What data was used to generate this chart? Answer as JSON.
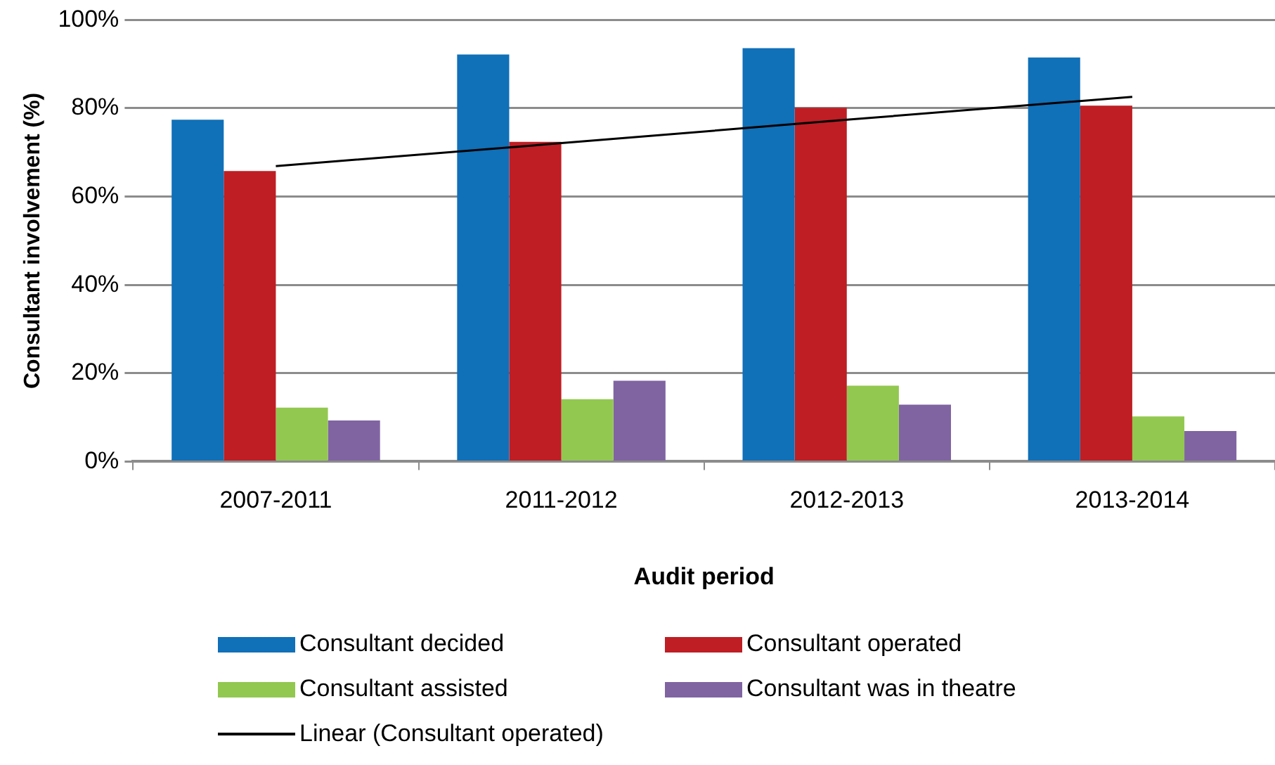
{
  "chart_data": {
    "type": "bar",
    "xlabel": "Audit period",
    "ylabel": "Consultant involvement (%)",
    "categories": [
      "2007-2011",
      "2011-2012",
      "2012-2013",
      "2013-2014"
    ],
    "series": [
      {
        "name": "Consultant decided",
        "color": "#1070b8",
        "values": [
          77.4,
          92.2,
          93.6,
          91.5
        ]
      },
      {
        "name": "Consultant operated",
        "color": "#be1e24",
        "values": [
          65.8,
          72.4,
          80.1,
          80.6
        ]
      },
      {
        "name": "Consultant assisted",
        "color": "#92c850",
        "values": [
          12.2,
          14.1,
          17.2,
          10.2
        ]
      },
      {
        "name": "Consultant was in theatre",
        "color": "#8064a2",
        "values": [
          9.3,
          18.3,
          12.9,
          6.9
        ]
      },
      {
        "name": "Linear (Consultant operated)",
        "type": "line",
        "color": "#000000",
        "marker": "none",
        "values": [
          66.9,
          72.1,
          77.4,
          82.6
        ]
      }
    ],
    "ylim": [
      0,
      100
    ],
    "yticks": [
      {
        "value": 0,
        "label": "0%"
      },
      {
        "value": 20,
        "label": "20%"
      },
      {
        "value": 40,
        "label": "40%"
      },
      {
        "value": 60,
        "label": "60%"
      },
      {
        "value": 80,
        "label": "80%"
      },
      {
        "value": 100,
        "label": "100%"
      }
    ],
    "grid": "y",
    "legend": "bottom"
  }
}
